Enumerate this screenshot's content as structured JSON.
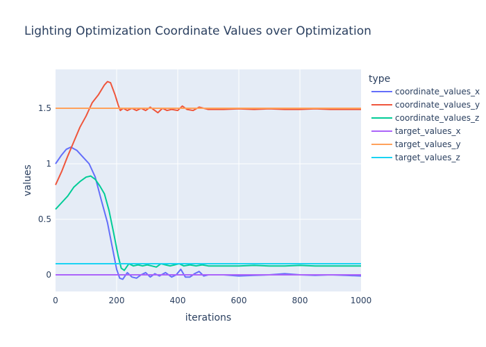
{
  "chart_data": {
    "type": "line",
    "title": "Lighting Optimization Coordinate Values over Optimization",
    "xlabel": "iterations",
    "ylabel": "values",
    "xlim": [
      0,
      1000
    ],
    "ylim": [
      -0.15,
      1.85
    ],
    "x_ticks": [
      0,
      200,
      400,
      600,
      800,
      1000
    ],
    "y_ticks": [
      0,
      0.5,
      1,
      1.5
    ],
    "y_tick_labels": [
      "0",
      "0.5",
      "1",
      "1.5"
    ],
    "grid": true,
    "legend_title": "type",
    "legend_position": "right",
    "series": [
      {
        "name": "coordinate_values_x",
        "color": "#636efa",
        "points": [
          [
            0,
            1.0
          ],
          [
            20,
            1.08
          ],
          [
            35,
            1.13
          ],
          [
            50,
            1.15
          ],
          [
            70,
            1.12
          ],
          [
            90,
            1.06
          ],
          [
            110,
            1.0
          ],
          [
            130,
            0.88
          ],
          [
            150,
            0.67
          ],
          [
            170,
            0.47
          ],
          [
            185,
            0.26
          ],
          [
            200,
            0.05
          ],
          [
            210,
            -0.03
          ],
          [
            220,
            -0.04
          ],
          [
            235,
            0.02
          ],
          [
            250,
            -0.02
          ],
          [
            265,
            -0.03
          ],
          [
            280,
            0.0
          ],
          [
            295,
            0.02
          ],
          [
            310,
            -0.02
          ],
          [
            325,
            0.01
          ],
          [
            340,
            -0.01
          ],
          [
            360,
            0.02
          ],
          [
            380,
            -0.02
          ],
          [
            395,
            0.0
          ],
          [
            410,
            0.05
          ],
          [
            425,
            -0.02
          ],
          [
            440,
            -0.02
          ],
          [
            455,
            0.01
          ],
          [
            470,
            0.03
          ],
          [
            485,
            -0.01
          ],
          [
            500,
            0.0
          ],
          [
            550,
            0.0
          ],
          [
            600,
            -0.01
          ],
          [
            650,
            -0.005
          ],
          [
            700,
            0.0
          ],
          [
            750,
            0.01
          ],
          [
            800,
            0.0
          ],
          [
            850,
            -0.005
          ],
          [
            900,
            0.0
          ],
          [
            950,
            -0.005
          ],
          [
            1000,
            -0.01
          ]
        ]
      },
      {
        "name": "coordinate_values_y",
        "color": "#ef553b",
        "points": [
          [
            0,
            0.81
          ],
          [
            20,
            0.93
          ],
          [
            40,
            1.07
          ],
          [
            60,
            1.2
          ],
          [
            80,
            1.33
          ],
          [
            100,
            1.43
          ],
          [
            120,
            1.55
          ],
          [
            140,
            1.62
          ],
          [
            160,
            1.71
          ],
          [
            170,
            1.74
          ],
          [
            180,
            1.73
          ],
          [
            195,
            1.62
          ],
          [
            205,
            1.53
          ],
          [
            212,
            1.48
          ],
          [
            222,
            1.5
          ],
          [
            235,
            1.48
          ],
          [
            250,
            1.5
          ],
          [
            265,
            1.48
          ],
          [
            280,
            1.5
          ],
          [
            295,
            1.48
          ],
          [
            310,
            1.51
          ],
          [
            325,
            1.48
          ],
          [
            335,
            1.46
          ],
          [
            350,
            1.5
          ],
          [
            365,
            1.48
          ],
          [
            380,
            1.49
          ],
          [
            400,
            1.48
          ],
          [
            415,
            1.52
          ],
          [
            430,
            1.49
          ],
          [
            450,
            1.48
          ],
          [
            470,
            1.51
          ],
          [
            485,
            1.5
          ],
          [
            500,
            1.49
          ],
          [
            550,
            1.49
          ],
          [
            600,
            1.495
          ],
          [
            650,
            1.49
          ],
          [
            700,
            1.495
          ],
          [
            750,
            1.49
          ],
          [
            800,
            1.49
          ],
          [
            850,
            1.495
          ],
          [
            900,
            1.49
          ],
          [
            950,
            1.49
          ],
          [
            1000,
            1.49
          ]
        ]
      },
      {
        "name": "coordinate_values_z",
        "color": "#00cc96",
        "points": [
          [
            0,
            0.59
          ],
          [
            20,
            0.65
          ],
          [
            40,
            0.71
          ],
          [
            60,
            0.79
          ],
          [
            80,
            0.84
          ],
          [
            100,
            0.88
          ],
          [
            115,
            0.89
          ],
          [
            130,
            0.86
          ],
          [
            145,
            0.8
          ],
          [
            160,
            0.73
          ],
          [
            175,
            0.58
          ],
          [
            190,
            0.38
          ],
          [
            205,
            0.17
          ],
          [
            215,
            0.06
          ],
          [
            225,
            0.04
          ],
          [
            240,
            0.1
          ],
          [
            255,
            0.08
          ],
          [
            270,
            0.09
          ],
          [
            285,
            0.08
          ],
          [
            300,
            0.09
          ],
          [
            315,
            0.08
          ],
          [
            330,
            0.07
          ],
          [
            345,
            0.1
          ],
          [
            360,
            0.09
          ],
          [
            375,
            0.08
          ],
          [
            390,
            0.09
          ],
          [
            405,
            0.1
          ],
          [
            420,
            0.08
          ],
          [
            440,
            0.09
          ],
          [
            460,
            0.08
          ],
          [
            480,
            0.09
          ],
          [
            500,
            0.08
          ],
          [
            550,
            0.08
          ],
          [
            600,
            0.08
          ],
          [
            650,
            0.085
          ],
          [
            700,
            0.08
          ],
          [
            750,
            0.08
          ],
          [
            800,
            0.085
          ],
          [
            850,
            0.08
          ],
          [
            900,
            0.08
          ],
          [
            950,
            0.08
          ],
          [
            1000,
            0.08
          ]
        ]
      },
      {
        "name": "target_values_x",
        "color": "#ab63fa",
        "points": [
          [
            0,
            0.0
          ],
          [
            1000,
            0.0
          ]
        ]
      },
      {
        "name": "target_values_y",
        "color": "#ffa15a",
        "points": [
          [
            0,
            1.5
          ],
          [
            1000,
            1.5
          ]
        ]
      },
      {
        "name": "target_values_z",
        "color": "#19d3f3",
        "points": [
          [
            0,
            0.1
          ],
          [
            1000,
            0.1
          ]
        ]
      }
    ]
  }
}
